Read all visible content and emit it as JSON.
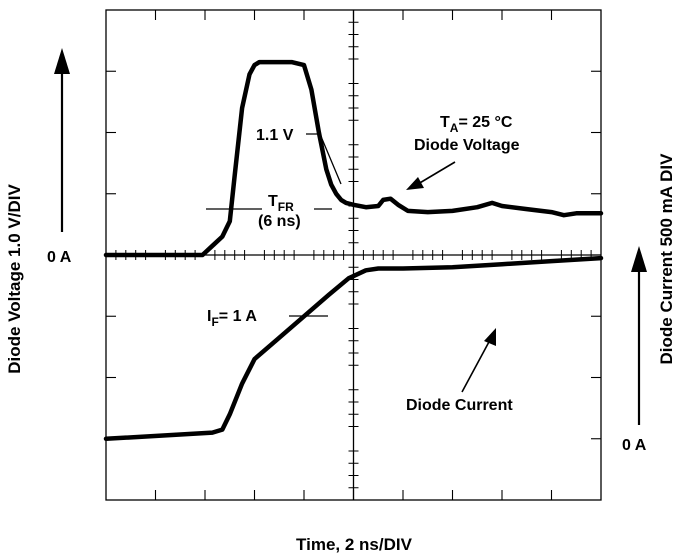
{
  "chart_data": {
    "type": "line",
    "title": "",
    "xlabel": "Time, 2 ns/DIV",
    "ylabel_left": "Diode Voltage 1.0 V/DIV",
    "ylabel_right": "Diode Current 500 mA DIV",
    "left_zero_label": "0 A",
    "right_zero_label": "0 A",
    "divisions": {
      "x": 10,
      "y": 8
    },
    "xlim": [
      0,
      20
    ],
    "grid": false,
    "series": [
      {
        "trace": "voltage",
        "x": [
          0,
          3.9,
          4.3,
          4.7,
          5.0,
          5.2,
          5.5,
          5.8,
          6.0,
          6.2,
          6.5,
          7.0,
          7.5,
          8.0,
          8.3,
          8.6,
          8.9,
          9.1,
          9.3,
          9.5,
          9.7,
          10.0,
          10.5,
          11.0,
          11.2,
          11.5,
          11.8,
          12.2,
          13.0,
          14.0,
          15.0,
          15.6,
          16.0,
          17.0,
          18.0,
          18.5,
          19.0,
          20.0
        ],
        "y": [
          0,
          0,
          0.15,
          0.3,
          0.55,
          1.3,
          2.4,
          2.95,
          3.1,
          3.15,
          3.15,
          3.15,
          3.15,
          3.1,
          2.7,
          2.0,
          1.4,
          1.15,
          1.0,
          0.9,
          0.85,
          0.82,
          0.78,
          0.8,
          0.9,
          0.92,
          0.82,
          0.72,
          0.7,
          0.72,
          0.78,
          0.85,
          0.8,
          0.75,
          0.7,
          0.65,
          0.68,
          0.68
        ]
      },
      {
        "trace": "current",
        "x": [
          0,
          4.3,
          4.7,
          5.0,
          5.5,
          6.0,
          7.0,
          8.0,
          9.0,
          9.8,
          10.5,
          11.0,
          12.0,
          14.0,
          16.0,
          18.0,
          20.0
        ],
        "y": [
          -3.0,
          -2.9,
          -2.85,
          -2.6,
          -2.1,
          -1.7,
          -1.35,
          -1.0,
          -0.65,
          -0.38,
          -0.25,
          -0.22,
          -0.22,
          -0.2,
          -0.15,
          -0.1,
          -0.05
        ]
      }
    ],
    "annotations": {
      "ta_main": "T",
      "ta_sub": "A",
      "ta_rest": "= 25 °C",
      "diode_voltage": "Diode Voltage",
      "v_marker": "1.1 V",
      "tfr_main": "T",
      "tfr_sub": "FR",
      "tfr_value": "(6 ns)",
      "if_main": "I",
      "if_sub": "F",
      "if_rest": "= 1 A",
      "diode_current": "Diode Current"
    },
    "colors": {
      "trace": "#000000",
      "axes": "#000000",
      "background": "#ffffff"
    }
  }
}
